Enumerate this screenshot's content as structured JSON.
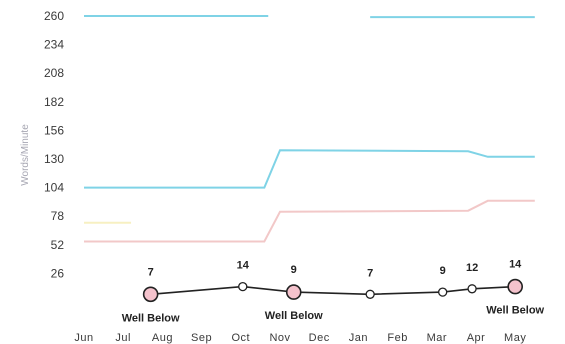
{
  "chart_data": {
    "type": "line",
    "xlabel": "",
    "ylabel": "Words/Minute",
    "ylim": [
      0,
      260
    ],
    "y_ticks": [
      26,
      52,
      78,
      104,
      130,
      156,
      182,
      208,
      234,
      260
    ],
    "x_ticks": [
      "Jun",
      "Jul",
      "Aug",
      "Sep",
      "Oct",
      "Nov",
      "Dec",
      "Jan",
      "Feb",
      "Mar",
      "Apr",
      "May"
    ],
    "grid": false,
    "legend": "none",
    "benchmark_lines": [
      {
        "color": "#7fd3e6",
        "points": [
          [
            0,
            260
          ],
          [
            4.7,
            260
          ]
        ]
      },
      {
        "color": "#7fd3e6",
        "points": [
          [
            7.3,
            259
          ],
          [
            11.5,
            259
          ]
        ]
      },
      {
        "color": "#7fd3e6",
        "points": [
          [
            0,
            104
          ],
          [
            4.6,
            104
          ],
          [
            5.0,
            138
          ],
          [
            9.8,
            137
          ],
          [
            10.3,
            132
          ],
          [
            11.5,
            132
          ]
        ]
      },
      {
        "color": "#f2c8c8",
        "points": [
          [
            0,
            55
          ],
          [
            4.6,
            55
          ],
          [
            5.0,
            82
          ],
          [
            9.8,
            83
          ],
          [
            10.3,
            92
          ],
          [
            11.5,
            92
          ]
        ]
      },
      {
        "color": "#f7f0c2",
        "points": [
          [
            0,
            72
          ],
          [
            1.2,
            72
          ]
        ]
      }
    ],
    "series": [
      {
        "marker_color": "#f4c2cc",
        "points": [
          {
            "x": 1.7,
            "y": 7,
            "label": "7",
            "highlight": true,
            "annotation": "Well Below"
          },
          {
            "x": 4.05,
            "y": 14,
            "label": "14",
            "highlight": false,
            "annotation": ""
          },
          {
            "x": 5.35,
            "y": 9,
            "label": "9",
            "highlight": true,
            "annotation": "Well Below"
          },
          {
            "x": 7.3,
            "y": 7,
            "label": "7",
            "highlight": false,
            "annotation": ""
          },
          {
            "x": 9.15,
            "y": 9,
            "label": "9",
            "highlight": false,
            "annotation": ""
          },
          {
            "x": 9.9,
            "y": 12,
            "label": "12",
            "highlight": false,
            "annotation": ""
          },
          {
            "x": 11.0,
            "y": 14,
            "label": "14",
            "highlight": true,
            "annotation": "Well Below"
          }
        ]
      }
    ]
  }
}
